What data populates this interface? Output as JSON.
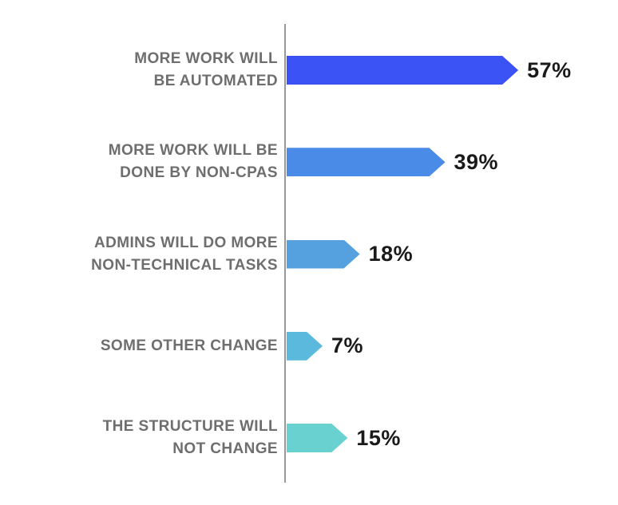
{
  "chart_data": {
    "type": "bar",
    "orientation": "horizontal",
    "bar_shape": "arrow",
    "title": "",
    "xlabel": "",
    "ylabel": "",
    "grid": false,
    "legend": false,
    "xlim": [
      0,
      60
    ],
    "categories": [
      "MORE WORK WILL BE AUTOMATED",
      "MORE WORK WILL BE DONE BY NON-CPAS",
      "ADMINS WILL DO MORE NON-TECHNICAL TASKS",
      "SOME OTHER CHANGE",
      "THE STRUCTURE WILL NOT CHANGE"
    ],
    "category_lines": [
      [
        "MORE WORK WILL",
        "BE AUTOMATED"
      ],
      [
        "MORE WORK WILL BE",
        "DONE BY NON-CPAS"
      ],
      [
        "ADMINS WILL DO MORE",
        "NON-TECHNICAL TASKS"
      ],
      [
        "SOME OTHER CHANGE"
      ],
      [
        "THE STRUCTURE WILL",
        "NOT CHANGE"
      ]
    ],
    "values": [
      57,
      39,
      18,
      7,
      15
    ],
    "value_labels": [
      "57%",
      "39%",
      "18%",
      "7%",
      "15%"
    ],
    "bar_colors": [
      "#3B52F4",
      "#4A8BE8",
      "#55A0DF",
      "#5CB9DE",
      "#69D1D0"
    ],
    "axis_line_color": "#999999",
    "label_color": "#6E6E6E",
    "value_color": "#1A1A1A"
  }
}
